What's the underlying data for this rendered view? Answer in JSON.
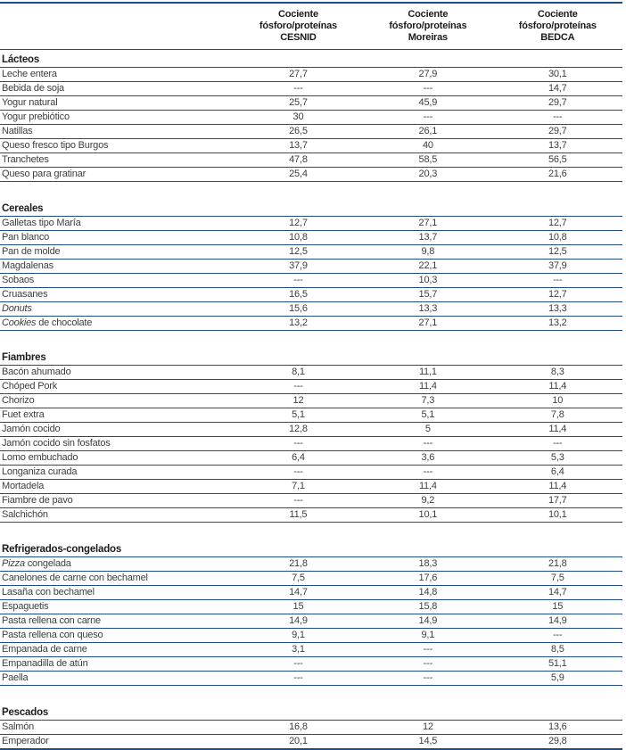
{
  "colors": {
    "rule_navy": "#1b4e87",
    "body_text": "#3d3d3c",
    "heading_text": "#1c1c1c"
  },
  "table": {
    "empty_value_dash": "---",
    "column_headers": [
      [
        "Cociente",
        "fósforo/proteínas",
        "CESNID"
      ],
      [
        "Cociente",
        "fósforo/proteínas",
        "Moreiras"
      ],
      [
        "Cociente",
        "fósforo/proteínas",
        "BEDCA"
      ]
    ],
    "sections": [
      {
        "title": "Lácteos",
        "rows": [
          {
            "label": "Leche entera",
            "values": [
              "27,7",
              "27,9",
              "30,1"
            ]
          },
          {
            "label": "Bebida de soja",
            "values": [
              "---",
              "---",
              "14,7"
            ]
          },
          {
            "label": "Yogur natural",
            "values": [
              "25,7",
              "45,9",
              "29,7"
            ]
          },
          {
            "label": "Yogur prebiótico",
            "values": [
              "30",
              "---",
              "---"
            ]
          },
          {
            "label": "Natillas",
            "values": [
              "26,5",
              "26,1",
              "29,7"
            ]
          },
          {
            "label": "Queso fresco tipo Burgos",
            "values": [
              "13,7",
              "40",
              "13,7"
            ]
          },
          {
            "label": "Tranchetes",
            "values": [
              "47,8",
              "58,5",
              "56,5"
            ]
          },
          {
            "label": "Queso para gratinar",
            "values": [
              "25,4",
              "20,3",
              "21,6"
            ]
          }
        ]
      },
      {
        "title": "Cereales",
        "rows": [
          {
            "label": "Galletas tipo María",
            "values": [
              "12,7",
              "27,1",
              "12,7"
            ]
          },
          {
            "label": "Pan blanco",
            "values": [
              "10,8",
              "13,7",
              "10,8"
            ]
          },
          {
            "label": "Pan de molde",
            "values": [
              "12,5",
              "9,8",
              "12,5"
            ]
          },
          {
            "label": "Magdalenas",
            "values": [
              "37,9",
              "22,1",
              "37,9"
            ]
          },
          {
            "label": "Sobaos",
            "values": [
              "---",
              "10,3",
              "---"
            ]
          },
          {
            "label": "Cruasanes",
            "values": [
              "16,5",
              "15,7",
              "12,7"
            ]
          },
          {
            "label_italic": "Donuts",
            "label": "",
            "values": [
              "15,6",
              "13,3",
              "13,3"
            ]
          },
          {
            "label_italic": "Cookies",
            "label": " de chocolate",
            "values": [
              "13,2",
              "27,1",
              "13,2"
            ]
          }
        ]
      },
      {
        "title": "Fiambres",
        "rows": [
          {
            "label": "Bacón ahumado",
            "values": [
              "8,1",
              "11,1",
              "8,3"
            ]
          },
          {
            "label": "Chóped Pork",
            "values": [
              "---",
              "11,4",
              "11,4"
            ]
          },
          {
            "label": "Chorizo",
            "values": [
              "12",
              "7,3",
              "10"
            ]
          },
          {
            "label": "Fuet extra",
            "values": [
              "5,1",
              "5,1",
              "7,8"
            ]
          },
          {
            "label": "Jamón cocido",
            "values": [
              "12,8",
              "5",
              "11,4"
            ]
          },
          {
            "label": "Jamón cocido sin fosfatos",
            "values": [
              "---",
              "---",
              "---"
            ]
          },
          {
            "label": "Lomo embuchado",
            "values": [
              "6,4",
              "3,6",
              "5,3"
            ]
          },
          {
            "label": "Longaniza curada",
            "values": [
              "---",
              "---",
              "6,4"
            ]
          },
          {
            "label": "Mortadela",
            "values": [
              "7,1",
              "11,4",
              "11,4"
            ]
          },
          {
            "label": "Fiambre de pavo",
            "values": [
              "---",
              "9,2",
              "17,7"
            ]
          },
          {
            "label": "Salchichón",
            "values": [
              "11,5",
              "10,1",
              "10,1"
            ]
          }
        ]
      },
      {
        "title": "Refrigerados-congelados",
        "rows": [
          {
            "label_italic": "Pizza",
            "label": " congelada",
            "values": [
              "21,8",
              "18,3",
              "21,8"
            ]
          },
          {
            "label": "Canelones de carne con bechamel",
            "values": [
              "7,5",
              "17,6",
              "7,5"
            ]
          },
          {
            "label": "Lasaña con bechamel",
            "values": [
              "14,7",
              "14,8",
              "14,7"
            ]
          },
          {
            "label": "Espaguetis",
            "values": [
              "15",
              "15,8",
              "15"
            ]
          },
          {
            "label": "Pasta rellena con carne",
            "values": [
              "14,9",
              "14,9",
              "14,9"
            ]
          },
          {
            "label": "Pasta rellena con queso",
            "values": [
              "9,1",
              "9,1",
              "---"
            ]
          },
          {
            "label": "Empanada de carne",
            "values": [
              "3,1",
              "---",
              "8,5"
            ]
          },
          {
            "label": "Empanadilla de atún",
            "values": [
              "---",
              "---",
              "51,1"
            ]
          },
          {
            "label": "Paella",
            "values": [
              "---",
              "---",
              "5,9"
            ]
          }
        ]
      },
      {
        "title": "Pescados",
        "rows": [
          {
            "label": "Salmón",
            "values": [
              "16,8",
              "12",
              "13,6"
            ]
          },
          {
            "label": "Emperador",
            "values": [
              "20,1",
              "14,5",
              "29,8"
            ]
          }
        ]
      }
    ]
  }
}
